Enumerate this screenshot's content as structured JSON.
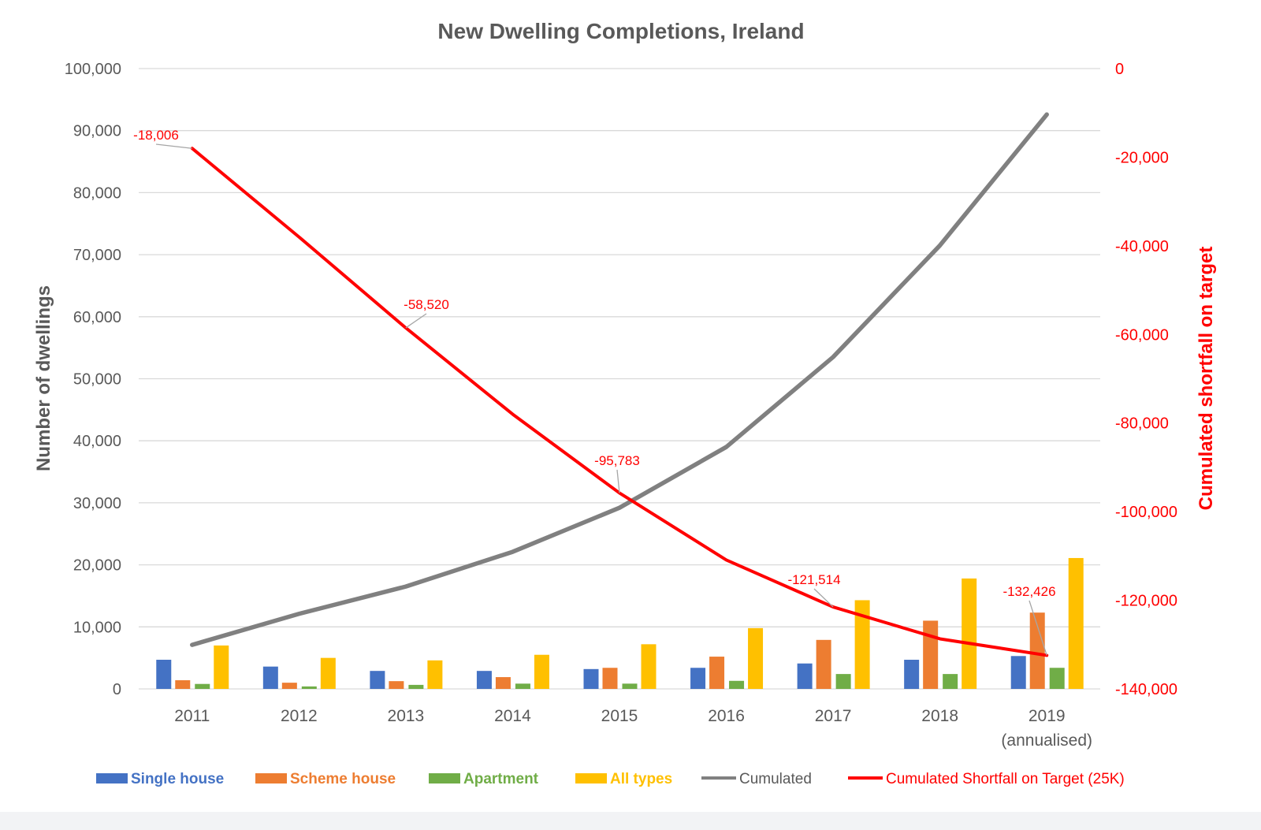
{
  "chart_data": {
    "type": "bar",
    "title": "New Dwelling Completions, Ireland",
    "ylabel": "Number of dwellings",
    "y2label": "Cumulated shortfall on target",
    "ylim": [
      0,
      100000
    ],
    "y2lim": [
      -140000,
      0
    ],
    "yticks": [
      "0",
      "10,000",
      "20,000",
      "30,000",
      "40,000",
      "50,000",
      "60,000",
      "70,000",
      "80,000",
      "90,000",
      "100,000"
    ],
    "y2ticks": [
      "-140,000",
      "-120,000",
      "-100,000",
      "-80,000",
      "-60,000",
      "-40,000",
      "-20,000",
      "0"
    ],
    "categories": [
      "2011",
      "2012",
      "2013",
      "2014",
      "2015",
      "2016",
      "2017",
      "2018",
      "2019"
    ],
    "category_sublabels": [
      "",
      "",
      "",
      "",
      "",
      "",
      "",
      "",
      "(annualised)"
    ],
    "grid": true,
    "legend_position": "bottom",
    "series": [
      {
        "name": "Single house",
        "kind": "bar",
        "axis": "left",
        "color": "#4472c4",
        "values": [
          4700,
          3600,
          2900,
          2900,
          3200,
          3400,
          4100,
          4700,
          5300
        ]
      },
      {
        "name": "Scheme house",
        "kind": "bar",
        "axis": "left",
        "color": "#ed7d31",
        "values": [
          1400,
          1000,
          1250,
          1900,
          3400,
          5200,
          7900,
          11000,
          12300
        ]
      },
      {
        "name": "Apartment",
        "kind": "bar",
        "axis": "left",
        "color": "#70ad47",
        "values": [
          800,
          400,
          650,
          850,
          850,
          1300,
          2400,
          2400,
          3400
        ]
      },
      {
        "name": "All types",
        "kind": "bar",
        "axis": "left",
        "color": "#ffc000",
        "values": [
          7000,
          5000,
          4600,
          5500,
          7200,
          9800,
          14300,
          17800,
          21100
        ]
      },
      {
        "name": "Cumulated",
        "kind": "line",
        "axis": "left",
        "color": "#808080",
        "values": [
          7100,
          12100,
          16500,
          22100,
          29200,
          39000,
          53500,
          71500,
          92600
        ]
      },
      {
        "name": "Cumulated Shortfall on Target (25K)",
        "kind": "line",
        "axis": "right",
        "color": "#ff0000",
        "values": [
          -18006,
          -38000,
          -58520,
          -78000,
          -95783,
          -110900,
          -121514,
          -128700,
          -132426
        ]
      }
    ],
    "data_labels": [
      {
        "category": "2011",
        "text": "-18,006"
      },
      {
        "category": "2013",
        "text": "-58,520"
      },
      {
        "category": "2015",
        "text": "-95,783"
      },
      {
        "category": "2017",
        "text": "-121,514"
      },
      {
        "category": "2019",
        "text": "-132,426"
      }
    ]
  }
}
